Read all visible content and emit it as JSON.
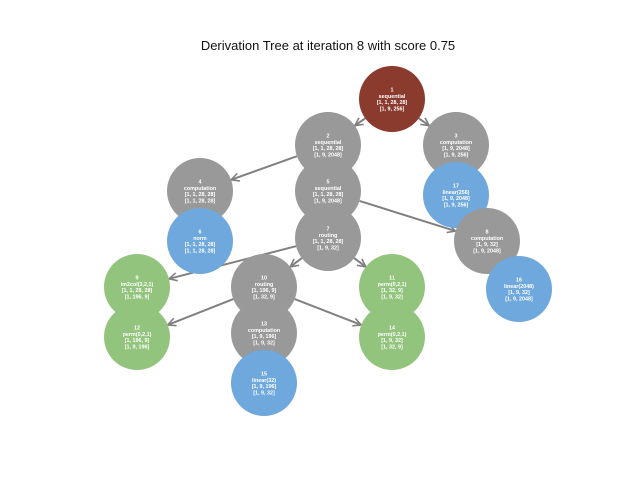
{
  "title": "Derivation Tree at iteration 8 with score 0.75",
  "colors": {
    "sequential_root": "#8B3A2E",
    "gray": "#999999",
    "blue": "#6FA8DC",
    "green": "#93C47D",
    "edge": "#808080"
  },
  "nodes": [
    {
      "id": "1",
      "kind": "sequential_root",
      "lines": [
        "1",
        "sequential",
        "[1, 1, 28, 28]",
        "[1, 9, 256]"
      ]
    },
    {
      "id": "2",
      "kind": "gray",
      "lines": [
        "2",
        "sequential",
        "[1, 1, 28, 28]",
        "[1, 9, 2048]"
      ]
    },
    {
      "id": "3",
      "kind": "gray",
      "lines": [
        "3",
        "computation",
        "[1, 9, 2048]",
        "[1, 9, 256]"
      ]
    },
    {
      "id": "4",
      "kind": "gray",
      "lines": [
        "4",
        "computation",
        "[1, 1, 28, 28]",
        "[1, 1, 28, 28]"
      ]
    },
    {
      "id": "5",
      "kind": "gray",
      "lines": [
        "5",
        "sequential",
        "[1, 1, 28, 28]",
        "[1, 9, 2048]"
      ]
    },
    {
      "id": "17",
      "kind": "blue",
      "lines": [
        "17",
        "linear(256)",
        "[1, 9, 2048]",
        "[1, 9, 256]"
      ]
    },
    {
      "id": "6",
      "kind": "blue",
      "lines": [
        "6",
        "norm",
        "[1, 1, 28, 28]",
        "[1, 1, 28, 28]"
      ]
    },
    {
      "id": "7",
      "kind": "gray",
      "lines": [
        "7",
        "routing",
        "[1, 1, 28, 28]",
        "[1, 9, 32]"
      ]
    },
    {
      "id": "8",
      "kind": "gray",
      "lines": [
        "8",
        "computation",
        "[1, 9, 32]",
        "[1, 9, 2048]"
      ]
    },
    {
      "id": "9",
      "kind": "green",
      "lines": [
        "9",
        "im2col(3,2,1)",
        "[1, 1, 28, 28]",
        "[1, 196, 9]"
      ]
    },
    {
      "id": "10",
      "kind": "gray",
      "lines": [
        "10",
        "routing",
        "[1, 196, 9]",
        "[1, 32, 9]"
      ]
    },
    {
      "id": "11",
      "kind": "green",
      "lines": [
        "11",
        "perm(0,2,1)",
        "[1, 32, 9]",
        "[1, 9, 32]"
      ]
    },
    {
      "id": "16",
      "kind": "blue",
      "lines": [
        "16",
        "linear(2048)",
        "[1, 9, 32]",
        "[1, 9, 2048]"
      ]
    },
    {
      "id": "12",
      "kind": "green",
      "lines": [
        "12",
        "perm(0,2,1)",
        "[1, 196, 9]",
        "[1, 9, 196]"
      ]
    },
    {
      "id": "13",
      "kind": "gray",
      "lines": [
        "13",
        "computation",
        "[1, 9, 196]",
        "[1, 9, 32]"
      ]
    },
    {
      "id": "14",
      "kind": "green",
      "lines": [
        "14",
        "perm(0,2,1)",
        "[1, 9, 32]",
        "[1, 32, 9]"
      ]
    },
    {
      "id": "15",
      "kind": "blue",
      "lines": [
        "15",
        "linear(32)",
        "[1, 9, 196]",
        "[1, 9, 32]"
      ]
    }
  ],
  "edges": [
    {
      "from": "1",
      "to": "2"
    },
    {
      "from": "1",
      "to": "3"
    },
    {
      "from": "2",
      "to": "4"
    },
    {
      "from": "2",
      "to": "5"
    },
    {
      "from": "3",
      "to": "17"
    },
    {
      "from": "4",
      "to": "6"
    },
    {
      "from": "5",
      "to": "7"
    },
    {
      "from": "5",
      "to": "8"
    },
    {
      "from": "7",
      "to": "9"
    },
    {
      "from": "7",
      "to": "10"
    },
    {
      "from": "7",
      "to": "11"
    },
    {
      "from": "8",
      "to": "16"
    },
    {
      "from": "10",
      "to": "12"
    },
    {
      "from": "10",
      "to": "13"
    },
    {
      "from": "10",
      "to": "14"
    },
    {
      "from": "13",
      "to": "15"
    }
  ]
}
